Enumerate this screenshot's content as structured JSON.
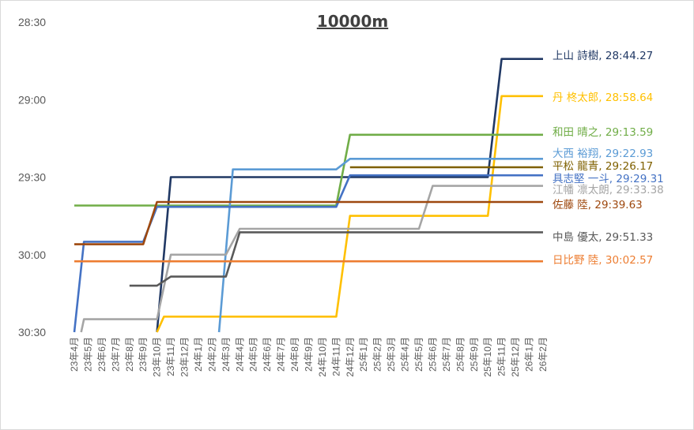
{
  "chart_data": {
    "type": "line",
    "title": "10000m",
    "xlabel": "",
    "ylabel": "",
    "categories": [
      "23年4月",
      "23年5月",
      "23年6月",
      "23年7月",
      "23年8月",
      "23年9月",
      "23年10月",
      "23年11月",
      "23年12月",
      "24年1月",
      "24年2月",
      "24年3月",
      "24年4月",
      "24年5月",
      "24年6月",
      "24年7月",
      "24年8月",
      "24年9月",
      "24年10月",
      "24年11月",
      "24年12月",
      "25年1月",
      "25年2月",
      "25年3月",
      "25年4月",
      "25年5月",
      "25年6月",
      "25年7月",
      "25年8月",
      "25年9月",
      "25年10月",
      "25年11月",
      "25年12月",
      "26年1月",
      "26年2月"
    ],
    "y_axis": {
      "reversed": true,
      "min_seconds": 1710,
      "max_seconds": 1830,
      "tick_step_seconds": 30,
      "tick_labels": [
        "28:30",
        "29:00",
        "29:30",
        "30:00",
        "30:30"
      ]
    },
    "grid": false,
    "legend": "none (labels at line ends)",
    "series": [
      {
        "label": "上山 詩樹, 28:44.27",
        "color": "#203864",
        "points": [
          [
            6,
            1830
          ],
          [
            7,
            1770
          ],
          [
            30,
            1770
          ],
          [
            31,
            1724.27
          ],
          [
            34,
            1724.27
          ]
        ]
      },
      {
        "label": "丹 柊太郎, 28:58.64",
        "color": "#ffc000",
        "points": [
          [
            6,
            1830
          ],
          [
            6.5,
            1824
          ],
          [
            19,
            1824
          ],
          [
            20,
            1785
          ],
          [
            30,
            1785
          ],
          [
            31,
            1738.64
          ],
          [
            34,
            1738.64
          ]
        ]
      },
      {
        "label": "和田 晴之, 29:13.59",
        "color": "#70ad47",
        "points": [
          [
            0,
            1781
          ],
          [
            19,
            1781
          ],
          [
            20,
            1753.59
          ],
          [
            34,
            1753.59
          ]
        ]
      },
      {
        "label": "大西 裕翔, 29:22.93",
        "color": "#5b9bd5",
        "points": [
          [
            10.5,
            1830
          ],
          [
            11.5,
            1767
          ],
          [
            19,
            1767
          ],
          [
            20,
            1762.93
          ],
          [
            34,
            1762.93
          ]
        ]
      },
      {
        "label": "平松 龍青, 29:26.17",
        "color": "#7f6000",
        "points": [
          [
            20,
            1766.17
          ],
          [
            34,
            1766.17
          ]
        ]
      },
      {
        "label": "具志堅 一斗, 29:29.31",
        "color": "#4472c4",
        "points": [
          [
            0,
            1830
          ],
          [
            0.7,
            1795
          ],
          [
            5,
            1795
          ],
          [
            6,
            1781.5
          ],
          [
            19,
            1781.5
          ],
          [
            20,
            1769.31
          ],
          [
            34,
            1769.31
          ]
        ]
      },
      {
        "label": "江幡 凛太朗, 29:33.38",
        "color": "#a5a5a5",
        "points": [
          [
            0.5,
            1830
          ],
          [
            0.7,
            1825
          ],
          [
            6,
            1825
          ],
          [
            7,
            1800
          ],
          [
            11,
            1800
          ],
          [
            12,
            1790
          ],
          [
            25,
            1790
          ],
          [
            26,
            1773.38
          ],
          [
            34,
            1773.38
          ]
        ]
      },
      {
        "label": "佐藤 陸, 29:39.63",
        "color": "#9e480e",
        "points": [
          [
            0,
            1796
          ],
          [
            5,
            1796
          ],
          [
            6,
            1779.63
          ],
          [
            34,
            1779.63
          ]
        ]
      },
      {
        "label": "中島 優太, 29:51.33",
        "color": "#595959",
        "points": [
          [
            4,
            1812
          ],
          [
            6,
            1812
          ],
          [
            7,
            1808.5
          ],
          [
            11,
            1808.5
          ],
          [
            12,
            1791.33
          ],
          [
            34,
            1791.33
          ]
        ]
      },
      {
        "label": "日比野 陸, 30:02.57",
        "color": "#ed7d31",
        "points": [
          [
            0,
            1802.57
          ],
          [
            34,
            1802.57
          ]
        ]
      }
    ]
  }
}
